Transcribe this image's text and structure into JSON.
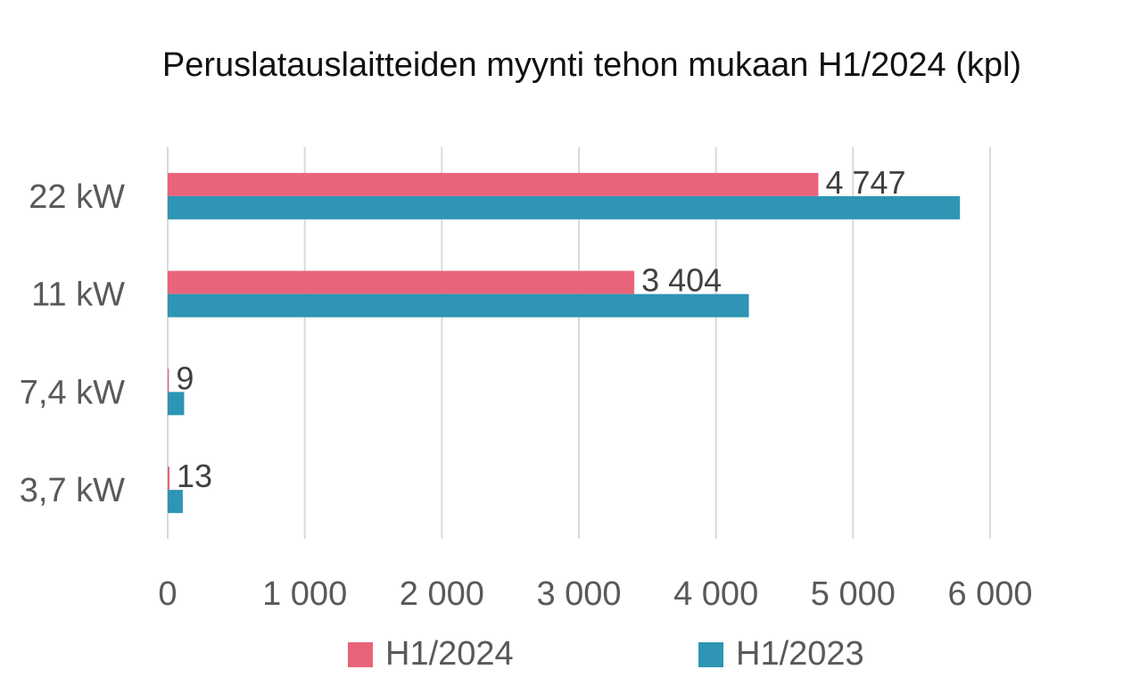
{
  "chart_data": {
    "type": "bar",
    "orientation": "horizontal",
    "title": "Peruslatauslaitteiden myynti tehon mukaan H1/2024 (kpl)",
    "categories": [
      "22 kW",
      "11 kW",
      "7,4 kW",
      "3,7 kW"
    ],
    "series": [
      {
        "name": "H1/2024",
        "color": "#E8647A",
        "values": [
          4747,
          3404,
          9,
          13
        ],
        "value_labels": [
          "4 747",
          "3 404",
          "9",
          "13"
        ]
      },
      {
        "name": "H1/2023",
        "color": "#2E95B4",
        "values": [
          5780,
          4240,
          120,
          110
        ]
      }
    ],
    "xlim": [
      0,
      6000
    ],
    "xticks": [
      0,
      1000,
      2000,
      3000,
      4000,
      5000,
      6000
    ],
    "xtick_labels": [
      "0",
      "1 000",
      "2 000",
      "3 000",
      "4 000",
      "5 000",
      "6 000"
    ],
    "grid": true,
    "legend_position": "bottom"
  }
}
